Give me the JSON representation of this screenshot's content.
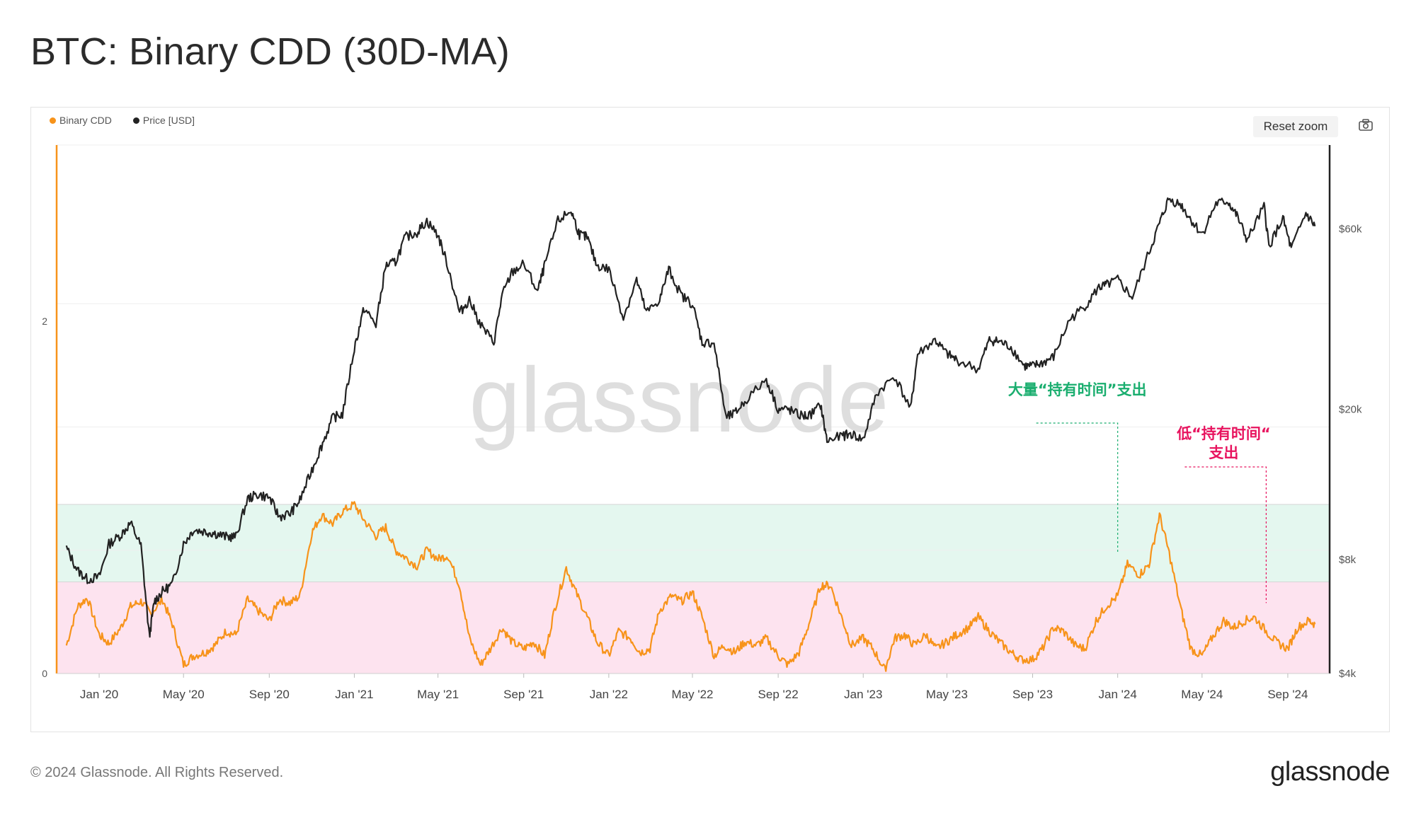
{
  "title": "BTC: Binary CDD (30D-MA)",
  "legend": [
    {
      "label": "Binary CDD",
      "color": "#f7931a"
    },
    {
      "label": "Price [USD]",
      "color": "#222222"
    }
  ],
  "toolbar": {
    "reset_zoom": "Reset zoom",
    "screenshot_icon": "camera-icon"
  },
  "watermark": "glassnode",
  "footer": {
    "copyright": "© 2024 Glassnode. All Rights Reserved.",
    "logo": "glassnode"
  },
  "colors": {
    "binary_cdd": "#f7931a",
    "price": "#222222",
    "green_band": "#e4f7ef",
    "pink_band": "#fde3ef",
    "green_annotation": "#1aae6f",
    "pink_annotation": "#e8145f"
  },
  "annotations": {
    "high_spending": "大量“持有时间”支出",
    "low_spending_line1": "低“持有时间“",
    "low_spending_line2": "支出"
  },
  "chart_data": {
    "type": "line",
    "x_axis": {
      "type": "date",
      "range": [
        "2019-11-01",
        "2024-10-31"
      ],
      "ticks": [
        {
          "date": "2020-01-01",
          "label": "Jan '20"
        },
        {
          "date": "2020-05-01",
          "label": "May '20"
        },
        {
          "date": "2020-09-01",
          "label": "Sep '20"
        },
        {
          "date": "2021-01-01",
          "label": "Jan '21"
        },
        {
          "date": "2021-05-01",
          "label": "May '21"
        },
        {
          "date": "2021-09-01",
          "label": "Sep '21"
        },
        {
          "date": "2022-01-01",
          "label": "Jan '22"
        },
        {
          "date": "2022-05-01",
          "label": "May '22"
        },
        {
          "date": "2022-09-01",
          "label": "Sep '22"
        },
        {
          "date": "2023-01-01",
          "label": "Jan '23"
        },
        {
          "date": "2023-05-01",
          "label": "May '23"
        },
        {
          "date": "2023-09-01",
          "label": "Sep '23"
        },
        {
          "date": "2024-01-01",
          "label": "Jan '24"
        },
        {
          "date": "2024-05-01",
          "label": "May '24"
        },
        {
          "date": "2024-09-01",
          "label": "Sep '24"
        }
      ]
    },
    "y_left": {
      "range": [
        0,
        3
      ],
      "ticks": [
        {
          "value": 0,
          "label": "0"
        },
        {
          "value": 2,
          "label": "2"
        }
      ]
    },
    "y_right": {
      "scale": "log",
      "range": [
        4000,
        100000
      ],
      "ticks": [
        {
          "value": 4000,
          "label": "$4k"
        },
        {
          "value": 8000,
          "label": "$8k"
        },
        {
          "value": 20000,
          "label": "$20k"
        },
        {
          "value": 60000,
          "label": "$60k"
        }
      ]
    },
    "bands": [
      {
        "axis": "left",
        "from": 0,
        "to": 0.52,
        "color": "#fde3ef"
      },
      {
        "axis": "left",
        "from": 0.52,
        "to": 0.96,
        "color": "#e4f7ef"
      }
    ],
    "series": [
      {
        "name": "Binary CDD",
        "axis": "left",
        "color": "#f7931a",
        "points": [
          [
            "2019-11-15",
            0.16
          ],
          [
            "2019-12-01",
            0.38
          ],
          [
            "2019-12-15",
            0.43
          ],
          [
            "2020-01-01",
            0.22
          ],
          [
            "2020-01-15",
            0.17
          ],
          [
            "2020-02-01",
            0.26
          ],
          [
            "2020-02-15",
            0.38
          ],
          [
            "2020-03-01",
            0.41
          ],
          [
            "2020-03-15",
            0.34
          ],
          [
            "2020-04-01",
            0.42
          ],
          [
            "2020-04-15",
            0.28
          ],
          [
            "2020-05-01",
            0.05
          ],
          [
            "2020-05-15",
            0.1
          ],
          [
            "2020-06-01",
            0.12
          ],
          [
            "2020-06-15",
            0.16
          ],
          [
            "2020-07-01",
            0.24
          ],
          [
            "2020-07-15",
            0.22
          ],
          [
            "2020-08-01",
            0.42
          ],
          [
            "2020-08-15",
            0.36
          ],
          [
            "2020-09-01",
            0.3
          ],
          [
            "2020-09-15",
            0.42
          ],
          [
            "2020-10-01",
            0.4
          ],
          [
            "2020-10-15",
            0.44
          ],
          [
            "2020-11-01",
            0.8
          ],
          [
            "2020-11-15",
            0.9
          ],
          [
            "2020-12-01",
            0.85
          ],
          [
            "2020-12-15",
            0.92
          ],
          [
            "2021-01-01",
            0.96
          ],
          [
            "2021-01-15",
            0.87
          ],
          [
            "2021-02-01",
            0.78
          ],
          [
            "2021-02-15",
            0.83
          ],
          [
            "2021-03-01",
            0.7
          ],
          [
            "2021-03-15",
            0.66
          ],
          [
            "2021-04-01",
            0.61
          ],
          [
            "2021-04-15",
            0.7
          ],
          [
            "2021-05-01",
            0.65
          ],
          [
            "2021-05-15",
            0.67
          ],
          [
            "2021-06-01",
            0.5
          ],
          [
            "2021-06-15",
            0.2
          ],
          [
            "2021-07-01",
            0.05
          ],
          [
            "2021-07-15",
            0.14
          ],
          [
            "2021-08-01",
            0.26
          ],
          [
            "2021-08-15",
            0.18
          ],
          [
            "2021-09-01",
            0.14
          ],
          [
            "2021-09-15",
            0.18
          ],
          [
            "2021-10-01",
            0.1
          ],
          [
            "2021-10-15",
            0.36
          ],
          [
            "2021-11-01",
            0.6
          ],
          [
            "2021-11-15",
            0.46
          ],
          [
            "2021-12-01",
            0.32
          ],
          [
            "2021-12-15",
            0.18
          ],
          [
            "2022-01-01",
            0.1
          ],
          [
            "2022-01-15",
            0.24
          ],
          [
            "2022-02-01",
            0.2
          ],
          [
            "2022-02-15",
            0.12
          ],
          [
            "2022-03-01",
            0.14
          ],
          [
            "2022-03-15",
            0.36
          ],
          [
            "2022-04-01",
            0.44
          ],
          [
            "2022-04-15",
            0.41
          ],
          [
            "2022-05-01",
            0.46
          ],
          [
            "2022-05-15",
            0.32
          ],
          [
            "2022-06-01",
            0.1
          ],
          [
            "2022-06-15",
            0.16
          ],
          [
            "2022-07-01",
            0.12
          ],
          [
            "2022-07-15",
            0.18
          ],
          [
            "2022-08-01",
            0.16
          ],
          [
            "2022-08-15",
            0.2
          ],
          [
            "2022-09-01",
            0.1
          ],
          [
            "2022-09-15",
            0.05
          ],
          [
            "2022-10-01",
            0.12
          ],
          [
            "2022-10-15",
            0.28
          ],
          [
            "2022-11-01",
            0.5
          ],
          [
            "2022-11-15",
            0.5
          ],
          [
            "2022-12-01",
            0.32
          ],
          [
            "2022-12-15",
            0.16
          ],
          [
            "2023-01-01",
            0.2
          ],
          [
            "2023-01-15",
            0.14
          ],
          [
            "2023-02-01",
            0.02
          ],
          [
            "2023-02-15",
            0.2
          ],
          [
            "2023-03-01",
            0.22
          ],
          [
            "2023-03-15",
            0.16
          ],
          [
            "2023-04-01",
            0.22
          ],
          [
            "2023-04-15",
            0.14
          ],
          [
            "2023-05-01",
            0.18
          ],
          [
            "2023-05-15",
            0.22
          ],
          [
            "2023-06-01",
            0.26
          ],
          [
            "2023-06-15",
            0.32
          ],
          [
            "2023-07-01",
            0.24
          ],
          [
            "2023-07-15",
            0.18
          ],
          [
            "2023-08-01",
            0.12
          ],
          [
            "2023-08-15",
            0.08
          ],
          [
            "2023-09-01",
            0.08
          ],
          [
            "2023-09-15",
            0.14
          ],
          [
            "2023-10-01",
            0.26
          ],
          [
            "2023-10-15",
            0.24
          ],
          [
            "2023-11-01",
            0.16
          ],
          [
            "2023-11-15",
            0.14
          ],
          [
            "2023-12-01",
            0.3
          ],
          [
            "2023-12-15",
            0.38
          ],
          [
            "2024-01-01",
            0.44
          ],
          [
            "2024-01-15",
            0.62
          ],
          [
            "2024-02-01",
            0.56
          ],
          [
            "2024-02-15",
            0.62
          ],
          [
            "2024-03-01",
            0.9
          ],
          [
            "2024-03-15",
            0.68
          ],
          [
            "2024-04-01",
            0.36
          ],
          [
            "2024-04-15",
            0.14
          ],
          [
            "2024-05-01",
            0.1
          ],
          [
            "2024-05-15",
            0.2
          ],
          [
            "2024-06-01",
            0.3
          ],
          [
            "2024-06-15",
            0.26
          ],
          [
            "2024-07-01",
            0.3
          ],
          [
            "2024-07-15",
            0.32
          ],
          [
            "2024-08-01",
            0.24
          ],
          [
            "2024-08-15",
            0.18
          ],
          [
            "2024-09-01",
            0.14
          ],
          [
            "2024-09-15",
            0.26
          ],
          [
            "2024-10-01",
            0.3
          ],
          [
            "2024-10-10",
            0.28
          ]
        ]
      },
      {
        "name": "Price [USD]",
        "axis": "right",
        "color": "#222222",
        "points": [
          [
            "2019-11-15",
            8600
          ],
          [
            "2019-12-01",
            7500
          ],
          [
            "2019-12-15",
            7100
          ],
          [
            "2020-01-01",
            7200
          ],
          [
            "2020-01-15",
            8800
          ],
          [
            "2020-02-01",
            9300
          ],
          [
            "2020-02-15",
            10000
          ],
          [
            "2020-03-01",
            8700
          ],
          [
            "2020-03-13",
            5000
          ],
          [
            "2020-03-20",
            6200
          ],
          [
            "2020-04-01",
            6600
          ],
          [
            "2020-04-15",
            6900
          ],
          [
            "2020-05-01",
            8800
          ],
          [
            "2020-05-15",
            9600
          ],
          [
            "2020-06-01",
            9500
          ],
          [
            "2020-06-15",
            9400
          ],
          [
            "2020-07-01",
            9200
          ],
          [
            "2020-07-15",
            9200
          ],
          [
            "2020-08-01",
            11600
          ],
          [
            "2020-08-15",
            11900
          ],
          [
            "2020-09-01",
            11700
          ],
          [
            "2020-09-15",
            10400
          ],
          [
            "2020-10-01",
            10600
          ],
          [
            "2020-10-15",
            11500
          ],
          [
            "2020-11-01",
            13800
          ],
          [
            "2020-11-15",
            16000
          ],
          [
            "2020-12-01",
            19000
          ],
          [
            "2020-12-15",
            19400
          ],
          [
            "2021-01-01",
            29000
          ],
          [
            "2021-01-15",
            37000
          ],
          [
            "2021-02-01",
            33500
          ],
          [
            "2021-02-15",
            48000
          ],
          [
            "2021-03-01",
            49000
          ],
          [
            "2021-03-15",
            57000
          ],
          [
            "2021-04-01",
            58800
          ],
          [
            "2021-04-15",
            63000
          ],
          [
            "2021-05-01",
            57800
          ],
          [
            "2021-05-15",
            48000
          ],
          [
            "2021-06-01",
            36000
          ],
          [
            "2021-06-15",
            39000
          ],
          [
            "2021-07-01",
            33500
          ],
          [
            "2021-07-20",
            30000
          ],
          [
            "2021-08-01",
            40000
          ],
          [
            "2021-08-15",
            46000
          ],
          [
            "2021-09-01",
            48500
          ],
          [
            "2021-09-21",
            41000
          ],
          [
            "2021-10-01",
            48000
          ],
          [
            "2021-10-20",
            63000
          ],
          [
            "2021-11-08",
            67000
          ],
          [
            "2021-11-20",
            58000
          ],
          [
            "2021-12-01",
            57000
          ],
          [
            "2021-12-15",
            48000
          ],
          [
            "2022-01-01",
            47000
          ],
          [
            "2022-01-22",
            35000
          ],
          [
            "2022-02-10",
            44000
          ],
          [
            "2022-02-24",
            36000
          ],
          [
            "2022-03-15",
            39000
          ],
          [
            "2022-03-28",
            47000
          ],
          [
            "2022-04-15",
            40000
          ],
          [
            "2022-05-01",
            38000
          ],
          [
            "2022-05-15",
            30000
          ],
          [
            "2022-06-01",
            30000
          ],
          [
            "2022-06-18",
            19000
          ],
          [
            "2022-07-01",
            19500
          ],
          [
            "2022-07-15",
            21000
          ],
          [
            "2022-08-15",
            24000
          ],
          [
            "2022-09-01",
            20000
          ],
          [
            "2022-09-15",
            20000
          ],
          [
            "2022-10-01",
            19300
          ],
          [
            "2022-10-15",
            19200
          ],
          [
            "2022-11-01",
            20500
          ],
          [
            "2022-11-10",
            16500
          ],
          [
            "2022-12-01",
            17000
          ],
          [
            "2022-12-15",
            17200
          ],
          [
            "2023-01-01",
            16600
          ],
          [
            "2023-01-20",
            22000
          ],
          [
            "2023-02-15",
            24500
          ],
          [
            "2023-03-10",
            20000
          ],
          [
            "2023-03-20",
            28000
          ],
          [
            "2023-04-14",
            30500
          ],
          [
            "2023-05-01",
            28000
          ],
          [
            "2023-05-15",
            27000
          ],
          [
            "2023-06-15",
            25500
          ],
          [
            "2023-07-01",
            30500
          ],
          [
            "2023-07-15",
            30200
          ],
          [
            "2023-08-01",
            29200
          ],
          [
            "2023-08-20",
            26000
          ],
          [
            "2023-09-01",
            26000
          ],
          [
            "2023-09-15",
            26500
          ],
          [
            "2023-10-01",
            27500
          ],
          [
            "2023-10-24",
            34500
          ],
          [
            "2023-11-15",
            37500
          ],
          [
            "2023-12-05",
            42000
          ],
          [
            "2023-12-15",
            42500
          ],
          [
            "2024-01-01",
            44000
          ],
          [
            "2024-01-22",
            39500
          ],
          [
            "2024-02-15",
            52000
          ],
          [
            "2024-03-01",
            62000
          ],
          [
            "2024-03-14",
            72000
          ],
          [
            "2024-04-01",
            69500
          ],
          [
            "2024-04-15",
            63500
          ],
          [
            "2024-05-01",
            58000
          ],
          [
            "2024-05-21",
            70000
          ],
          [
            "2024-06-07",
            71000
          ],
          [
            "2024-06-20",
            65000
          ],
          [
            "2024-07-05",
            56000
          ],
          [
            "2024-07-29",
            69000
          ],
          [
            "2024-08-05",
            54000
          ],
          [
            "2024-08-25",
            64000
          ],
          [
            "2024-09-06",
            53000
          ],
          [
            "2024-09-27",
            66000
          ],
          [
            "2024-10-10",
            61000
          ]
        ]
      }
    ],
    "annotation_markers": [
      {
        "text_key": "high_spending",
        "date": "2024-01-01",
        "left_value": 0.68
      },
      {
        "text_key": "low_spending",
        "date": "2024-08-01",
        "left_value": 0.4
      }
    ]
  }
}
